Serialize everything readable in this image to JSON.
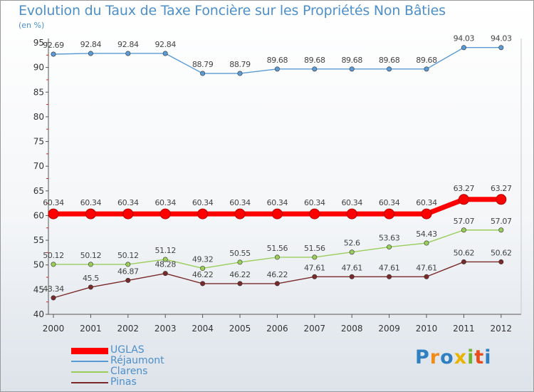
{
  "chart_data": {
    "type": "line",
    "title": "Evolution du Taux de Taxe Foncière sur les Propriétés Non Bâties",
    "ylabel": "(en %)",
    "xlabel": "",
    "ylim": [
      40,
      95
    ],
    "yticks": [
      40,
      45,
      50,
      55,
      60,
      65,
      70,
      75,
      80,
      85,
      90,
      95
    ],
    "categories": [
      "2000",
      "2001",
      "2002",
      "2003",
      "2004",
      "2005",
      "2006",
      "2007",
      "2008",
      "2009",
      "2010",
      "2011",
      "2012"
    ],
    "series": [
      {
        "name": "UGLAS",
        "color": "#ff0000",
        "values": [
          60.34,
          60.34,
          60.34,
          60.34,
          60.34,
          60.34,
          60.34,
          60.34,
          60.34,
          60.34,
          60.34,
          63.27,
          63.27
        ],
        "labels": [
          "60.34",
          "60.34",
          "60.34",
          "60.34",
          "60.34",
          "60.34",
          "60.34",
          "60.34",
          "60.34",
          "60.34",
          "60.34",
          "63.27",
          "63.27"
        ]
      },
      {
        "name": "Réjaumont",
        "color": "#5b9bd5",
        "values": [
          92.69,
          92.84,
          92.84,
          92.84,
          88.79,
          88.79,
          89.68,
          89.68,
          89.68,
          89.68,
          89.68,
          94.03,
          94.03
        ],
        "labels": [
          "92.69",
          "92.84",
          "92.84",
          "92.84",
          "88.79",
          "88.79",
          "89.68",
          "89.68",
          "89.68",
          "89.68",
          "89.68",
          "94.03",
          "94.03"
        ]
      },
      {
        "name": "Clarens",
        "color": "#9acd5a",
        "values": [
          50.12,
          50.12,
          50.12,
          51.12,
          49.32,
          50.55,
          51.56,
          51.56,
          52.6,
          53.63,
          54.43,
          57.07,
          57.07
        ],
        "labels": [
          "50.12",
          "50.12",
          "50.12",
          "51.12",
          "49.32",
          "50.55",
          "51.56",
          "51.56",
          "52.6",
          "53.63",
          "54.43",
          "57.07",
          "57.07"
        ]
      },
      {
        "name": "Pinas",
        "color": "#7a2a2a",
        "values": [
          43.34,
          45.5,
          46.87,
          48.28,
          46.22,
          46.22,
          46.22,
          47.61,
          47.61,
          47.61,
          47.61,
          50.62,
          50.62
        ],
        "labels": [
          "43.34",
          "45.5",
          "46.87",
          "48.28",
          "46.22",
          "46.22",
          "46.22",
          "47.61",
          "47.61",
          "47.61",
          "47.61",
          "50.62",
          "50.62"
        ]
      }
    ]
  },
  "brand": {
    "letters": [
      {
        "ch": "P",
        "color": "#2f7fc1"
      },
      {
        "ch": "r",
        "color": "#f08c1a"
      },
      {
        "ch": "o",
        "color": "#2f7fc1"
      },
      {
        "ch": "x",
        "color": "#e8b400"
      },
      {
        "ch": "i",
        "color": "#6fb52c"
      },
      {
        "ch": "t",
        "color": "#e84e1b"
      },
      {
        "ch": "i",
        "color": "#2f7fc1"
      }
    ]
  }
}
